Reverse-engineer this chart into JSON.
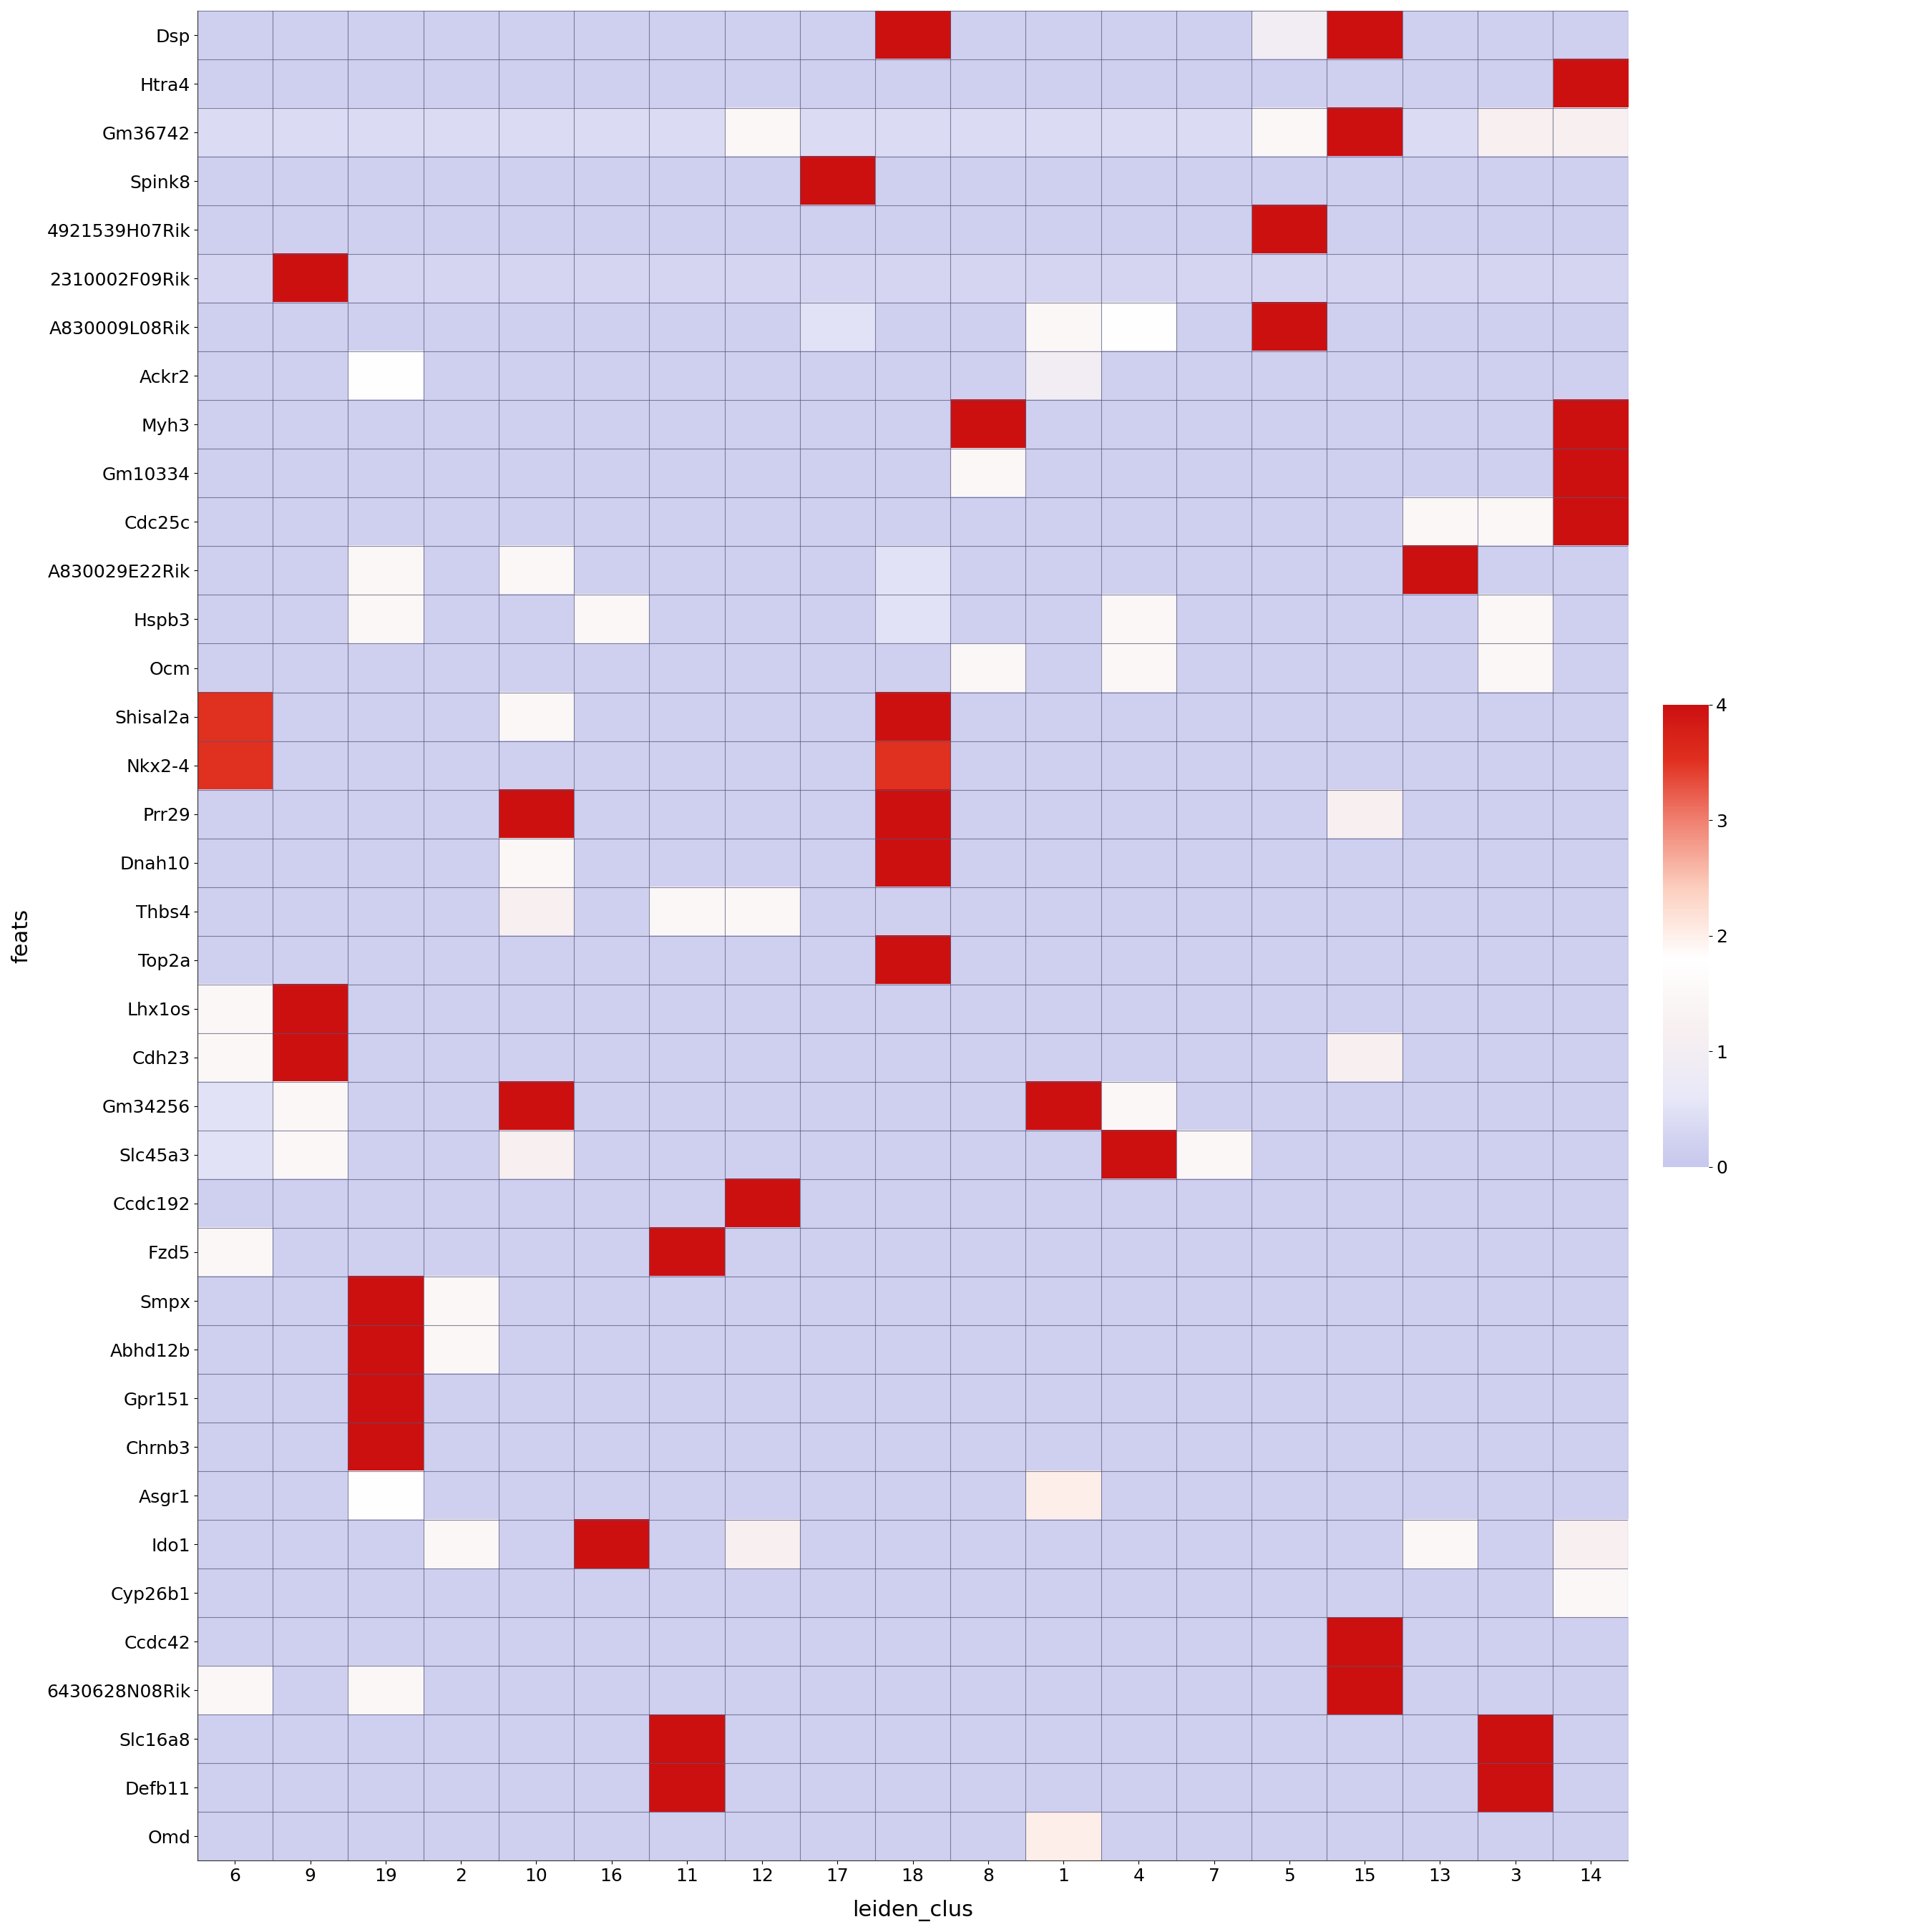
{
  "genes": [
    "Dsp",
    "Htra4",
    "Gm36742",
    "Spink8",
    "4921539H07Rik",
    "2310002F09Rik",
    "A830009L08Rik",
    "Ackr2",
    "Myh3",
    "Gm10334",
    "Cdc25c",
    "A830029E22Rik",
    "Hspb3",
    "Ocm",
    "Shisal2a",
    "Nkx2-4",
    "Prr29",
    "Dnah10",
    "Thbs4",
    "Top2a",
    "Lhx1os",
    "Cdh23",
    "Gm34256",
    "Slc45a3",
    "Ccdc192",
    "Fzd5",
    "Smpx",
    "Abhd12b",
    "Gpr151",
    "Chrnb3",
    "Asgr1",
    "Ido1",
    "Cyp26b1",
    "Ccdc42",
    "6430628N08Rik",
    "Slc16a8",
    "Defb11",
    "Omd"
  ],
  "clusters": [
    "6",
    "9",
    "19",
    "2",
    "10",
    "16",
    "11",
    "12",
    "17",
    "18",
    "8",
    "1",
    "4",
    "7",
    "5",
    "15",
    "13",
    "3",
    "14"
  ],
  "matrix": [
    [
      0.2,
      0.2,
      0.2,
      0.2,
      0.2,
      0.2,
      0.2,
      0.2,
      0.2,
      4.2,
      0.2,
      0.2,
      0.2,
      0.2,
      1.0,
      4.5,
      0.2,
      0.2,
      0.2
    ],
    [
      0.2,
      0.2,
      0.2,
      0.2,
      0.2,
      0.2,
      0.2,
      0.2,
      0.2,
      0.2,
      0.2,
      0.2,
      0.2,
      0.2,
      0.2,
      0.2,
      0.2,
      0.2,
      4.5
    ],
    [
      0.4,
      0.4,
      0.4,
      0.4,
      0.4,
      0.4,
      0.4,
      1.5,
      0.4,
      0.4,
      0.4,
      0.4,
      0.4,
      0.4,
      1.5,
      4.0,
      0.4,
      1.2,
      1.2
    ],
    [
      0.2,
      0.2,
      0.2,
      0.2,
      0.2,
      0.2,
      0.2,
      0.2,
      5.0,
      0.2,
      0.2,
      0.2,
      0.2,
      0.2,
      0.2,
      0.2,
      0.2,
      0.2,
      0.2
    ],
    [
      0.2,
      0.2,
      0.2,
      0.2,
      0.2,
      0.2,
      0.2,
      0.2,
      0.2,
      0.2,
      0.2,
      0.2,
      0.2,
      0.2,
      4.5,
      0.2,
      0.2,
      0.2,
      0.2
    ],
    [
      0.3,
      5.0,
      0.3,
      0.3,
      0.3,
      0.3,
      0.3,
      0.3,
      0.3,
      0.3,
      0.3,
      0.3,
      0.3,
      0.3,
      0.3,
      0.3,
      0.3,
      0.3,
      0.3
    ],
    [
      0.2,
      0.2,
      0.2,
      0.2,
      0.2,
      0.2,
      0.2,
      0.2,
      0.5,
      0.2,
      0.2,
      1.5,
      1.8,
      0.2,
      4.5,
      0.2,
      0.2,
      0.2,
      0.2
    ],
    [
      0.2,
      0.2,
      1.8,
      0.2,
      0.2,
      0.2,
      0.2,
      0.2,
      0.2,
      0.2,
      0.2,
      1.0,
      0.2,
      0.2,
      0.2,
      0.2,
      0.2,
      0.2,
      0.2
    ],
    [
      0.2,
      0.2,
      0.2,
      0.2,
      0.2,
      0.2,
      0.2,
      0.2,
      0.2,
      0.2,
      4.5,
      0.2,
      0.2,
      0.2,
      0.2,
      0.2,
      0.2,
      0.2,
      4.5
    ],
    [
      0.2,
      0.2,
      0.2,
      0.2,
      0.2,
      0.2,
      0.2,
      0.2,
      0.2,
      0.2,
      1.5,
      0.2,
      0.2,
      0.2,
      0.2,
      0.2,
      0.2,
      0.2,
      4.5
    ],
    [
      0.2,
      0.2,
      0.2,
      0.2,
      0.2,
      0.2,
      0.2,
      0.2,
      0.2,
      0.2,
      0.2,
      0.2,
      0.2,
      0.2,
      0.2,
      0.2,
      1.5,
      1.5,
      4.5
    ],
    [
      0.2,
      0.2,
      1.5,
      0.2,
      1.5,
      0.2,
      0.2,
      0.2,
      0.2,
      0.5,
      0.2,
      0.2,
      0.2,
      0.2,
      0.2,
      0.2,
      4.5,
      0.2,
      0.2
    ],
    [
      0.2,
      0.2,
      1.5,
      0.2,
      0.2,
      1.5,
      0.2,
      0.2,
      0.2,
      0.5,
      0.2,
      0.2,
      1.5,
      0.2,
      0.2,
      0.2,
      0.2,
      1.5,
      0.2
    ],
    [
      0.2,
      0.2,
      0.2,
      0.2,
      0.2,
      0.2,
      0.2,
      0.2,
      0.2,
      0.2,
      1.5,
      0.2,
      1.5,
      0.2,
      0.2,
      0.2,
      0.2,
      1.5,
      0.2
    ],
    [
      3.5,
      0.2,
      0.2,
      0.2,
      1.5,
      0.2,
      0.2,
      0.2,
      0.2,
      4.0,
      0.2,
      0.2,
      0.2,
      0.2,
      0.2,
      0.2,
      0.2,
      0.2,
      0.2
    ],
    [
      3.5,
      0.2,
      0.2,
      0.2,
      0.2,
      0.2,
      0.2,
      0.2,
      0.2,
      3.5,
      0.2,
      0.2,
      0.2,
      0.2,
      0.2,
      0.2,
      0.2,
      0.2,
      0.2
    ],
    [
      0.2,
      0.2,
      0.2,
      0.2,
      4.5,
      0.2,
      0.2,
      0.2,
      0.2,
      4.5,
      0.2,
      0.2,
      0.2,
      0.2,
      0.2,
      1.2,
      0.2,
      0.2,
      0.2
    ],
    [
      0.2,
      0.2,
      0.2,
      0.2,
      1.5,
      0.2,
      0.2,
      0.2,
      0.2,
      4.5,
      0.2,
      0.2,
      0.2,
      0.2,
      0.2,
      0.2,
      0.2,
      0.2,
      0.2
    ],
    [
      0.2,
      0.2,
      0.2,
      0.2,
      1.2,
      0.2,
      1.5,
      1.5,
      0.2,
      0.2,
      0.2,
      0.2,
      0.2,
      0.2,
      0.2,
      0.2,
      0.2,
      0.2,
      0.2
    ],
    [
      0.2,
      0.2,
      0.2,
      0.2,
      0.2,
      0.2,
      0.2,
      0.2,
      0.2,
      4.5,
      0.2,
      0.2,
      0.2,
      0.2,
      0.2,
      0.2,
      0.2,
      0.2,
      0.2
    ],
    [
      1.5,
      4.5,
      0.2,
      0.2,
      0.2,
      0.2,
      0.2,
      0.2,
      0.2,
      0.2,
      0.2,
      0.2,
      0.2,
      0.2,
      0.2,
      0.2,
      0.2,
      0.2,
      0.2
    ],
    [
      1.5,
      4.5,
      0.2,
      0.2,
      0.2,
      0.2,
      0.2,
      0.2,
      0.2,
      0.2,
      0.2,
      0.2,
      0.2,
      0.2,
      0.2,
      1.2,
      0.2,
      0.2,
      0.2
    ],
    [
      0.5,
      1.5,
      0.2,
      0.2,
      4.5,
      0.2,
      0.2,
      0.2,
      0.2,
      0.2,
      0.2,
      4.5,
      1.5,
      0.2,
      0.2,
      0.2,
      0.2,
      0.2,
      0.2
    ],
    [
      0.5,
      1.5,
      0.2,
      0.2,
      1.2,
      0.2,
      0.2,
      0.2,
      0.2,
      0.2,
      0.2,
      0.2,
      4.0,
      1.5,
      0.2,
      0.2,
      0.2,
      0.2,
      0.2
    ],
    [
      0.2,
      0.2,
      0.2,
      0.2,
      0.2,
      0.2,
      0.2,
      4.5,
      0.2,
      0.2,
      0.2,
      0.2,
      0.2,
      0.2,
      0.2,
      0.2,
      0.2,
      0.2,
      0.2
    ],
    [
      1.5,
      0.2,
      0.2,
      0.2,
      0.2,
      0.2,
      4.5,
      0.2,
      0.2,
      0.2,
      0.2,
      0.2,
      0.2,
      0.2,
      0.2,
      0.2,
      0.2,
      0.2,
      0.2
    ],
    [
      0.2,
      0.2,
      4.5,
      1.5,
      0.2,
      0.2,
      0.2,
      0.2,
      0.2,
      0.2,
      0.2,
      0.2,
      0.2,
      0.2,
      0.2,
      0.2,
      0.2,
      0.2,
      0.2
    ],
    [
      0.2,
      0.2,
      4.5,
      1.5,
      0.2,
      0.2,
      0.2,
      0.2,
      0.2,
      0.2,
      0.2,
      0.2,
      0.2,
      0.2,
      0.2,
      0.2,
      0.2,
      0.2,
      0.2
    ],
    [
      0.2,
      0.2,
      4.5,
      0.2,
      0.2,
      0.2,
      0.2,
      0.2,
      0.2,
      0.2,
      0.2,
      0.2,
      0.2,
      0.2,
      0.2,
      0.2,
      0.2,
      0.2,
      0.2
    ],
    [
      0.2,
      0.2,
      4.5,
      0.2,
      0.2,
      0.2,
      0.2,
      0.2,
      0.2,
      0.2,
      0.2,
      0.2,
      0.2,
      0.2,
      0.2,
      0.2,
      0.2,
      0.2,
      0.2
    ],
    [
      0.2,
      0.2,
      1.8,
      0.2,
      0.2,
      0.2,
      0.2,
      0.2,
      0.2,
      0.2,
      0.2,
      2.0,
      0.2,
      0.2,
      0.2,
      0.2,
      0.2,
      0.2,
      0.2
    ],
    [
      0.2,
      0.2,
      0.2,
      1.5,
      0.2,
      5.0,
      0.2,
      1.2,
      0.2,
      0.2,
      0.2,
      0.2,
      0.2,
      0.2,
      0.2,
      0.2,
      1.5,
      0.2,
      1.2
    ],
    [
      0.2,
      0.2,
      0.2,
      0.2,
      0.2,
      0.2,
      0.2,
      0.2,
      0.2,
      0.2,
      0.2,
      0.2,
      0.2,
      0.2,
      0.2,
      0.2,
      0.2,
      0.2,
      1.5
    ],
    [
      0.2,
      0.2,
      0.2,
      0.2,
      0.2,
      0.2,
      0.2,
      0.2,
      0.2,
      0.2,
      0.2,
      0.2,
      0.2,
      0.2,
      0.2,
      4.5,
      0.2,
      0.2,
      0.2
    ],
    [
      1.5,
      0.2,
      1.5,
      0.2,
      0.2,
      0.2,
      0.2,
      0.2,
      0.2,
      0.2,
      0.2,
      0.2,
      0.2,
      0.2,
      0.2,
      4.5,
      0.2,
      0.2,
      0.2
    ],
    [
      0.2,
      0.2,
      0.2,
      0.2,
      0.2,
      0.2,
      4.5,
      0.2,
      0.2,
      0.2,
      0.2,
      0.2,
      0.2,
      0.2,
      0.2,
      0.2,
      0.2,
      4.5,
      0.2
    ],
    [
      0.2,
      0.2,
      0.2,
      0.2,
      0.2,
      0.2,
      4.5,
      0.2,
      0.2,
      0.2,
      0.2,
      0.2,
      0.2,
      0.2,
      0.2,
      0.2,
      0.2,
      4.5,
      0.2
    ],
    [
      0.2,
      0.2,
      0.2,
      0.2,
      0.2,
      0.2,
      0.2,
      0.2,
      0.2,
      0.2,
      0.2,
      2.0,
      0.2,
      0.2,
      0.2,
      0.2,
      0.2,
      0.2,
      0.2
    ]
  ],
  "vmin": 0,
  "vmax": 4,
  "xlabel": "leiden_clus",
  "ylabel": "feats",
  "colorbar_ticks": [
    0,
    1,
    2,
    3,
    4
  ],
  "grid_color": "#555577",
  "background_color": "#d8d8ef",
  "title_fontsize": 14,
  "label_fontsize": 22,
  "tick_fontsize": 18
}
